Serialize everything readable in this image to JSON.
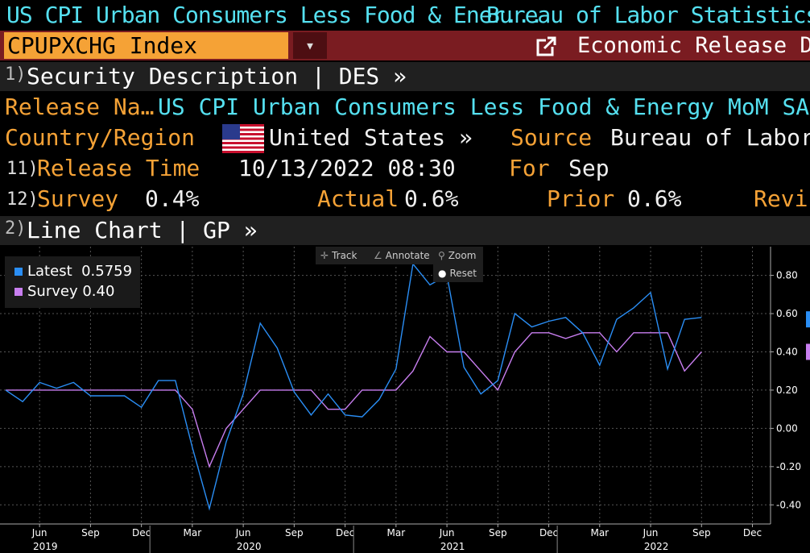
{
  "header": {
    "title_left": "US CPI Urban Consumers Less Food & Ener...",
    "title_right": "Bureau of Labor Statistics"
  },
  "ticker": {
    "value": "CPUPXCHG Index",
    "dropdown_glyph": "▾",
    "function_label": "Economic Release Det"
  },
  "section1": {
    "num": "1)",
    "label": "Security Description  | DES  »"
  },
  "fields": {
    "release_name_label": "Release Na…",
    "release_name_value": "US CPI Urban Consumers Less Food & Energy MoM SA »",
    "country_label": "Country/Region",
    "country_value": "United States »",
    "source_label": "Source",
    "source_value": "Bureau of Labor S",
    "release_time_num": "11)",
    "release_time_label": "Release Time",
    "release_time_value": "10/13/2022 08:30",
    "for_label": "For",
    "for_value": "Sep",
    "survey_num": "12)",
    "survey_label": "Survey",
    "survey_value": "0.4%",
    "actual_label": "Actual",
    "actual_value": "0.6%",
    "prior_label": "Prior",
    "prior_value": "0.6%",
    "revised_label": "Revis"
  },
  "section2": {
    "num": "2)",
    "label": "Line Chart | GP »"
  },
  "toolbar": {
    "track": "Track",
    "annotate": "Annotate",
    "zoom": "Zoom",
    "reset": "Reset"
  },
  "legend": {
    "latest_label": "Latest",
    "latest_value": "0.5759",
    "survey_label": "Survey",
    "survey_value": "0.40"
  },
  "colors": {
    "latest": "#2a8ef5",
    "survey": "#c87ef0",
    "orange": "#f5a236",
    "cyan": "#55e0f0",
    "maroon": "#7a1c21"
  },
  "chart_data": {
    "type": "line",
    "x": [
      "2019-04",
      "2019-05",
      "2019-06",
      "2019-07",
      "2019-08",
      "2019-09",
      "2019-10",
      "2019-11",
      "2019-12",
      "2020-01",
      "2020-02",
      "2020-03",
      "2020-04",
      "2020-05",
      "2020-06",
      "2020-07",
      "2020-08",
      "2020-09",
      "2020-10",
      "2020-11",
      "2020-12",
      "2021-01",
      "2021-02",
      "2021-03",
      "2021-04",
      "2021-05",
      "2021-06",
      "2021-07",
      "2021-08",
      "2021-09",
      "2021-10",
      "2021-11",
      "2021-12",
      "2022-01",
      "2022-02",
      "2022-03",
      "2022-04",
      "2022-05",
      "2022-06",
      "2022-07",
      "2022-08",
      "2022-09"
    ],
    "series": [
      {
        "name": "Latest",
        "values": [
          0.2,
          0.14,
          0.24,
          0.21,
          0.24,
          0.17,
          0.17,
          0.17,
          0.11,
          0.25,
          0.25,
          -0.1,
          -0.42,
          -0.07,
          0.18,
          0.55,
          0.42,
          0.19,
          0.07,
          0.18,
          0.07,
          0.06,
          0.15,
          0.31,
          0.86,
          0.75,
          0.8,
          0.32,
          0.18,
          0.25,
          0.6,
          0.53,
          0.56,
          0.58,
          0.5,
          0.33,
          0.57,
          0.63,
          0.71,
          0.31,
          0.57,
          0.58
        ]
      },
      {
        "name": "Survey",
        "values": [
          0.2,
          0.2,
          0.2,
          0.2,
          0.2,
          0.2,
          0.2,
          0.2,
          0.2,
          0.2,
          0.2,
          0.1,
          -0.2,
          0.0,
          0.1,
          0.2,
          0.2,
          0.2,
          0.2,
          0.1,
          0.1,
          0.2,
          0.2,
          0.2,
          0.3,
          0.48,
          0.4,
          0.4,
          0.3,
          0.2,
          0.4,
          0.5,
          0.5,
          0.47,
          0.5,
          0.5,
          0.4,
          0.5,
          0.5,
          0.5,
          0.3,
          0.4
        ]
      }
    ],
    "ylim": [
      -0.5,
      0.95
    ],
    "yticks": [
      "0.80",
      "0.60",
      "0.40",
      "0.20",
      "0.00",
      "-0.20",
      "-0.40"
    ],
    "ytick_values": [
      0.8,
      0.6,
      0.4,
      0.2,
      0.0,
      -0.2,
      -0.4
    ],
    "xtick_labels": [
      "Jun",
      "Sep",
      "Dec",
      "Mar",
      "Jun",
      "Sep",
      "Dec",
      "Mar",
      "Jun",
      "Sep",
      "Dec",
      "Mar",
      "Jun",
      "Sep",
      "Dec"
    ],
    "xtick_dates": [
      "2019-06",
      "2019-09",
      "2019-12",
      "2020-03",
      "2020-06",
      "2020-09",
      "2020-12",
      "2021-03",
      "2021-06",
      "2021-09",
      "2021-12",
      "2022-03",
      "2022-06",
      "2022-09",
      "2022-12"
    ],
    "year_labels": [
      "2019",
      "2020",
      "2021",
      "2022"
    ],
    "year_dates": [
      "2019-07",
      "2020-07",
      "2021-07",
      "2022-07"
    ],
    "grid": true
  }
}
